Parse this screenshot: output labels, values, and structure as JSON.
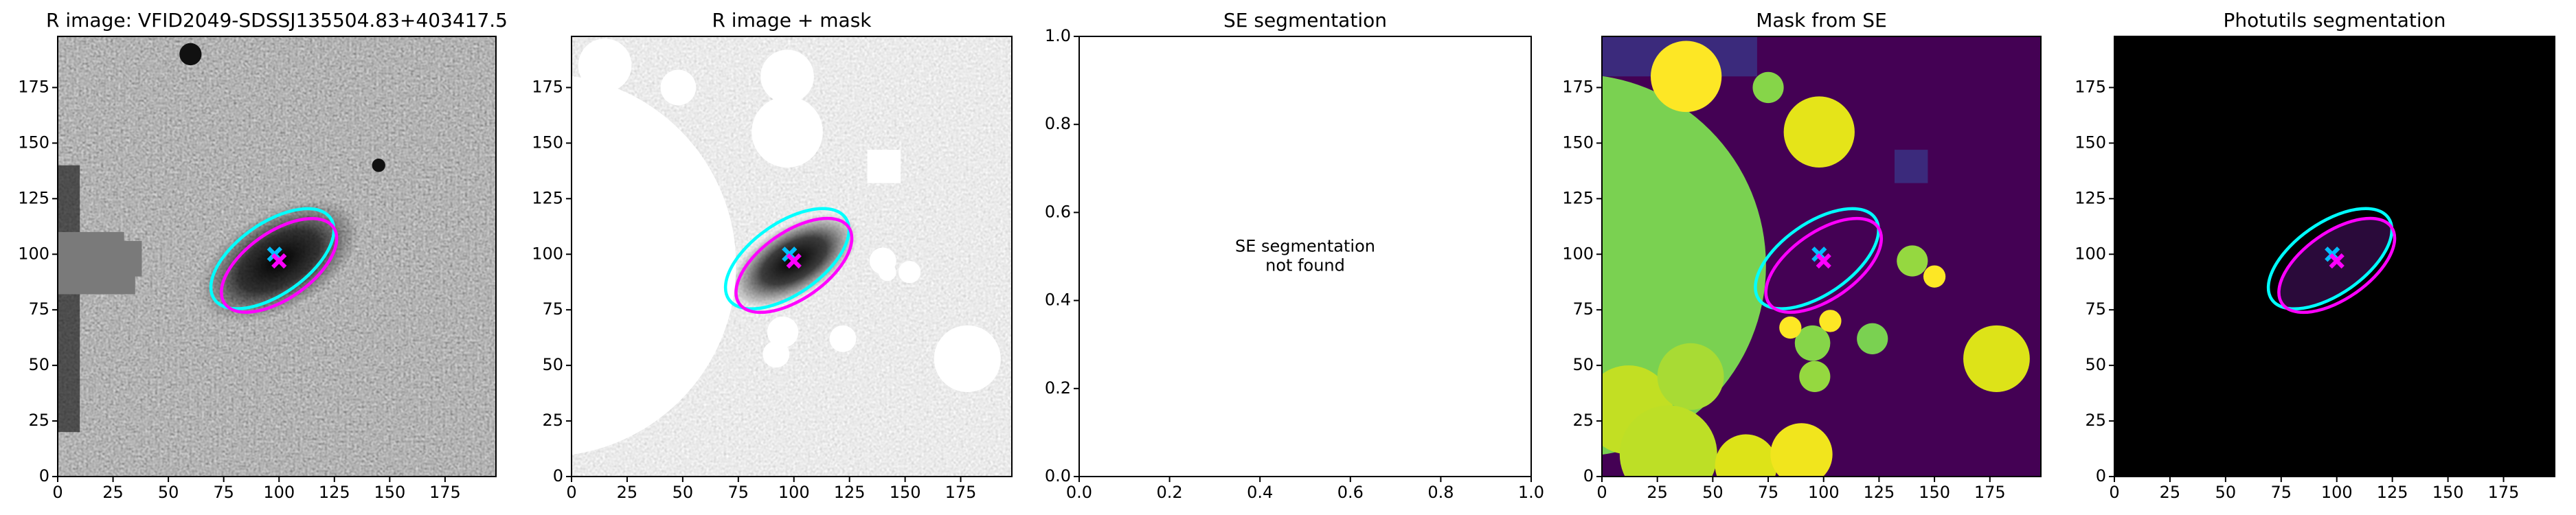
{
  "chart_data": [
    {
      "type": "image",
      "title": "R image: VFID2049-SDSSJ135504.83+403417.5",
      "xlim": [
        0,
        198
      ],
      "ylim": [
        0,
        198
      ],
      "xticks": [
        0,
        25,
        50,
        75,
        100,
        125,
        150,
        175
      ],
      "yticks": [
        0,
        25,
        50,
        75,
        100,
        125,
        150,
        175
      ],
      "ellipses": [
        {
          "color": "#00ffff",
          "center": [
            97,
            98
          ],
          "width": 64,
          "height": 32,
          "angle": 35
        },
        {
          "color": "#ff00ff",
          "center": [
            100,
            95
          ],
          "width": 60,
          "height": 30,
          "angle": 35
        }
      ],
      "markers": [
        {
          "color": "#00bfff",
          "x": 98,
          "y": 100
        },
        {
          "color": "#ff00ff",
          "x": 100,
          "y": 97
        }
      ]
    },
    {
      "type": "image",
      "title": "R image + mask",
      "xlim": [
        0,
        198
      ],
      "ylim": [
        0,
        198
      ],
      "xticks": [
        0,
        25,
        50,
        75,
        100,
        125,
        150,
        175
      ],
      "yticks": [
        0,
        25,
        50,
        75,
        100,
        125,
        150,
        175
      ],
      "ellipses": [
        {
          "color": "#00ffff",
          "center": [
            97,
            98
          ],
          "width": 64,
          "height": 32,
          "angle": 35
        },
        {
          "color": "#ff00ff",
          "center": [
            100,
            95
          ],
          "width": 60,
          "height": 30,
          "angle": 35
        }
      ],
      "markers": [
        {
          "color": "#00bfff",
          "x": 98,
          "y": 100
        },
        {
          "color": "#ff00ff",
          "x": 100,
          "y": 97
        }
      ]
    },
    {
      "type": "empty",
      "title": "SE segmentation",
      "xlim": [
        0,
        1
      ],
      "ylim": [
        0,
        1
      ],
      "xticks": [
        {
          "value": 0,
          "label": "0.0"
        },
        0.2,
        0.4,
        0.6,
        0.8,
        {
          "value": 1,
          "label": "1.0"
        }
      ],
      "yticks": [
        {
          "value": 0,
          "label": "0.0"
        },
        0.2,
        0.4,
        0.6,
        0.8,
        {
          "value": 1,
          "label": "1.0"
        }
      ],
      "annotation": [
        "SE segmentation",
        "not found"
      ]
    },
    {
      "type": "image",
      "title": "Mask from SE",
      "xlim": [
        0,
        198
      ],
      "ylim": [
        0,
        198
      ],
      "xticks": [
        0,
        25,
        50,
        75,
        100,
        125,
        150,
        175
      ],
      "yticks": [
        0,
        25,
        50,
        75,
        100,
        125,
        150,
        175
      ],
      "ellipses": [
        {
          "color": "#00ffff",
          "center": [
            97,
            98
          ],
          "width": 64,
          "height": 32,
          "angle": 35
        },
        {
          "color": "#ff00ff",
          "center": [
            100,
            95
          ],
          "width": 60,
          "height": 30,
          "angle": 35
        }
      ],
      "markers": [
        {
          "color": "#00bfff",
          "x": 98,
          "y": 100
        },
        {
          "color": "#ff00ff",
          "x": 100,
          "y": 97
        }
      ]
    },
    {
      "type": "image",
      "title": "Photutils segmentation",
      "xlim": [
        0,
        198
      ],
      "ylim": [
        0,
        198
      ],
      "xticks": [
        0,
        25,
        50,
        75,
        100,
        125,
        150,
        175
      ],
      "yticks": [
        0,
        25,
        50,
        75,
        100,
        125,
        150,
        175
      ],
      "ellipses": [
        {
          "color": "#00ffff",
          "center": [
            97,
            98
          ],
          "width": 64,
          "height": 32,
          "angle": 35
        },
        {
          "color": "#ff00ff",
          "center": [
            100,
            95
          ],
          "width": 60,
          "height": 30,
          "angle": 35
        }
      ],
      "markers": [
        {
          "color": "#00bfff",
          "x": 98,
          "y": 100
        },
        {
          "color": "#ff00ff",
          "x": 100,
          "y": 97
        }
      ]
    }
  ]
}
